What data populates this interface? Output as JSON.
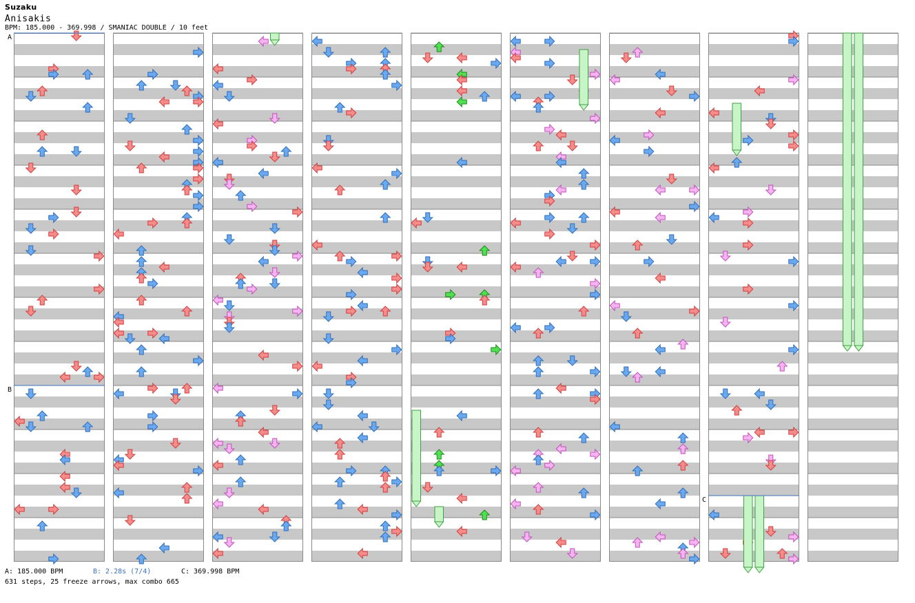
{
  "song": {
    "title": "Suzaku",
    "artist": "Anisakis",
    "info": "BPM: 185.000 - 369.998 / SMANIAC DOUBLE / 10 feet"
  },
  "legend": {
    "a": "A: 185.000 BPM",
    "b": "B: 2.28s (7/4)",
    "c": "C: 369.998 BPM"
  },
  "summary": "631 steps, 25 freeze arrows, max combo 665",
  "markers": [
    {
      "label": "A",
      "column": 1,
      "measure": 0,
      "beat": 0
    },
    {
      "label": "B",
      "column": 1,
      "measure": 8,
      "beat": 0
    },
    {
      "label": "C",
      "column": 8,
      "measure": 10,
      "beat": 2
    }
  ],
  "colors": {
    "red": "#f58c8c",
    "red_stroke": "#d43c3c",
    "blue": "#6aa8f0",
    "blue_stroke": "#2e6db8",
    "pink": "#f5b4f0",
    "pink_stroke": "#c050bc",
    "green": "#52e052",
    "green_stroke": "#188a18",
    "freeze": "#c8f5c8",
    "freeze_stroke": "#40a040",
    "stripe": "#c8c8c8",
    "marker_line": "#3a6fc1"
  },
  "chart_data": {
    "type": "step_chart",
    "columns": 9,
    "measures_per_column": 12,
    "lanes": [
      "P1-Left",
      "P1-Down",
      "P1-Up",
      "P1-Right",
      "P2-Left",
      "P2-Down",
      "P2-Up",
      "P2-Right"
    ],
    "steps": 631,
    "freeze_arrows": 25,
    "max_combo": 665
  }
}
